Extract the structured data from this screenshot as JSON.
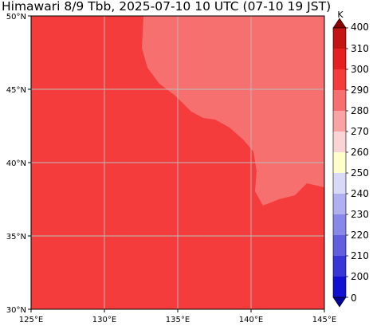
{
  "title": "Himawari 8/9 Tbb, 2025-07-10 10 UTC (07-10 19 JST)",
  "map": {
    "lon_range": [
      125,
      145
    ],
    "lat_range": [
      30,
      50
    ],
    "x_ticks": [
      "125°E",
      "130°E",
      "135°E",
      "140°E",
      "145°E"
    ],
    "y_ticks": [
      "50°N",
      "45°N",
      "40°N",
      "35°N",
      "30°N"
    ],
    "gridlines": true,
    "projection": "PlateCarree"
  },
  "colorbar": {
    "unit": "K",
    "levels": [
      400,
      310,
      300,
      290,
      280,
      270,
      260,
      250,
      240,
      230,
      220,
      210,
      200,
      0
    ],
    "colors": [
      "#8b0000",
      "#c41414",
      "#e62020",
      "#f53c3c",
      "#f77070",
      "#f9a3a3",
      "#fbd5d5",
      "#ffffcc",
      "#d8d8f7",
      "#b0b0f0",
      "#8888e8",
      "#5f5fe0",
      "#3737d8",
      "#1010d0",
      "#000099"
    ]
  }
}
